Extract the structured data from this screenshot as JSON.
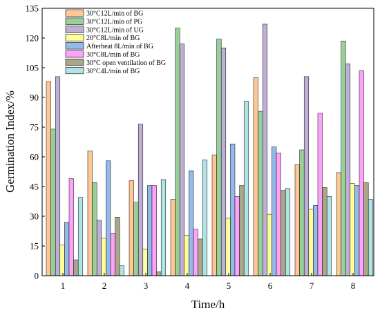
{
  "chart_data": {
    "type": "bar",
    "xlabel": "Time/h",
    "ylabel": "Germination Index/%",
    "categories": [
      "1",
      "2",
      "3",
      "4",
      "5",
      "6",
      "7",
      "8"
    ],
    "ylim": [
      0,
      135
    ],
    "yticks": [
      0,
      15,
      30,
      45,
      60,
      75,
      90,
      105,
      120,
      135
    ],
    "grid": false,
    "legend_position": "top-left",
    "series": [
      {
        "name": "30°C12L/min of BG",
        "color": "#FDC796",
        "values": [
          98,
          63,
          48,
          38.5,
          61,
          100,
          56,
          52
        ]
      },
      {
        "name": "30°C12L/min of PG",
        "color": "#99CF99",
        "values": [
          74,
          47,
          37,
          125,
          119.5,
          83,
          63.5,
          118.5
        ]
      },
      {
        "name": "30°C12L/min of UG",
        "color": "#BEAFD4",
        "values": [
          100.5,
          28,
          76.5,
          117,
          115,
          127,
          100.5,
          107
        ]
      },
      {
        "name": "20°C8L/min of BG",
        "color": "#FFFF99",
        "values": [
          15.5,
          19,
          13.5,
          20.5,
          29,
          31,
          33.5,
          46.5
        ]
      },
      {
        "name": "Afterheat 8L/min of BG",
        "color": "#95B9E8",
        "values": [
          27,
          58,
          45.5,
          53,
          66.5,
          65,
          35.5,
          45.5
        ]
      },
      {
        "name": "30°C8L/min of BG",
        "color": "#FDA4F8",
        "values": [
          49,
          21.5,
          45.5,
          23.5,
          40,
          62,
          82,
          103.5
        ]
      },
      {
        "name": "30°C open ventilation of BG",
        "color": "#A9A78A",
        "values": [
          8,
          29.5,
          2,
          18.5,
          45.5,
          43,
          44.5,
          47
        ]
      },
      {
        "name": "30°C4L/min of BG",
        "color": "#B1E2E4",
        "values": [
          39.5,
          5,
          48.5,
          58.5,
          88,
          44,
          40,
          38.5
        ]
      }
    ]
  }
}
